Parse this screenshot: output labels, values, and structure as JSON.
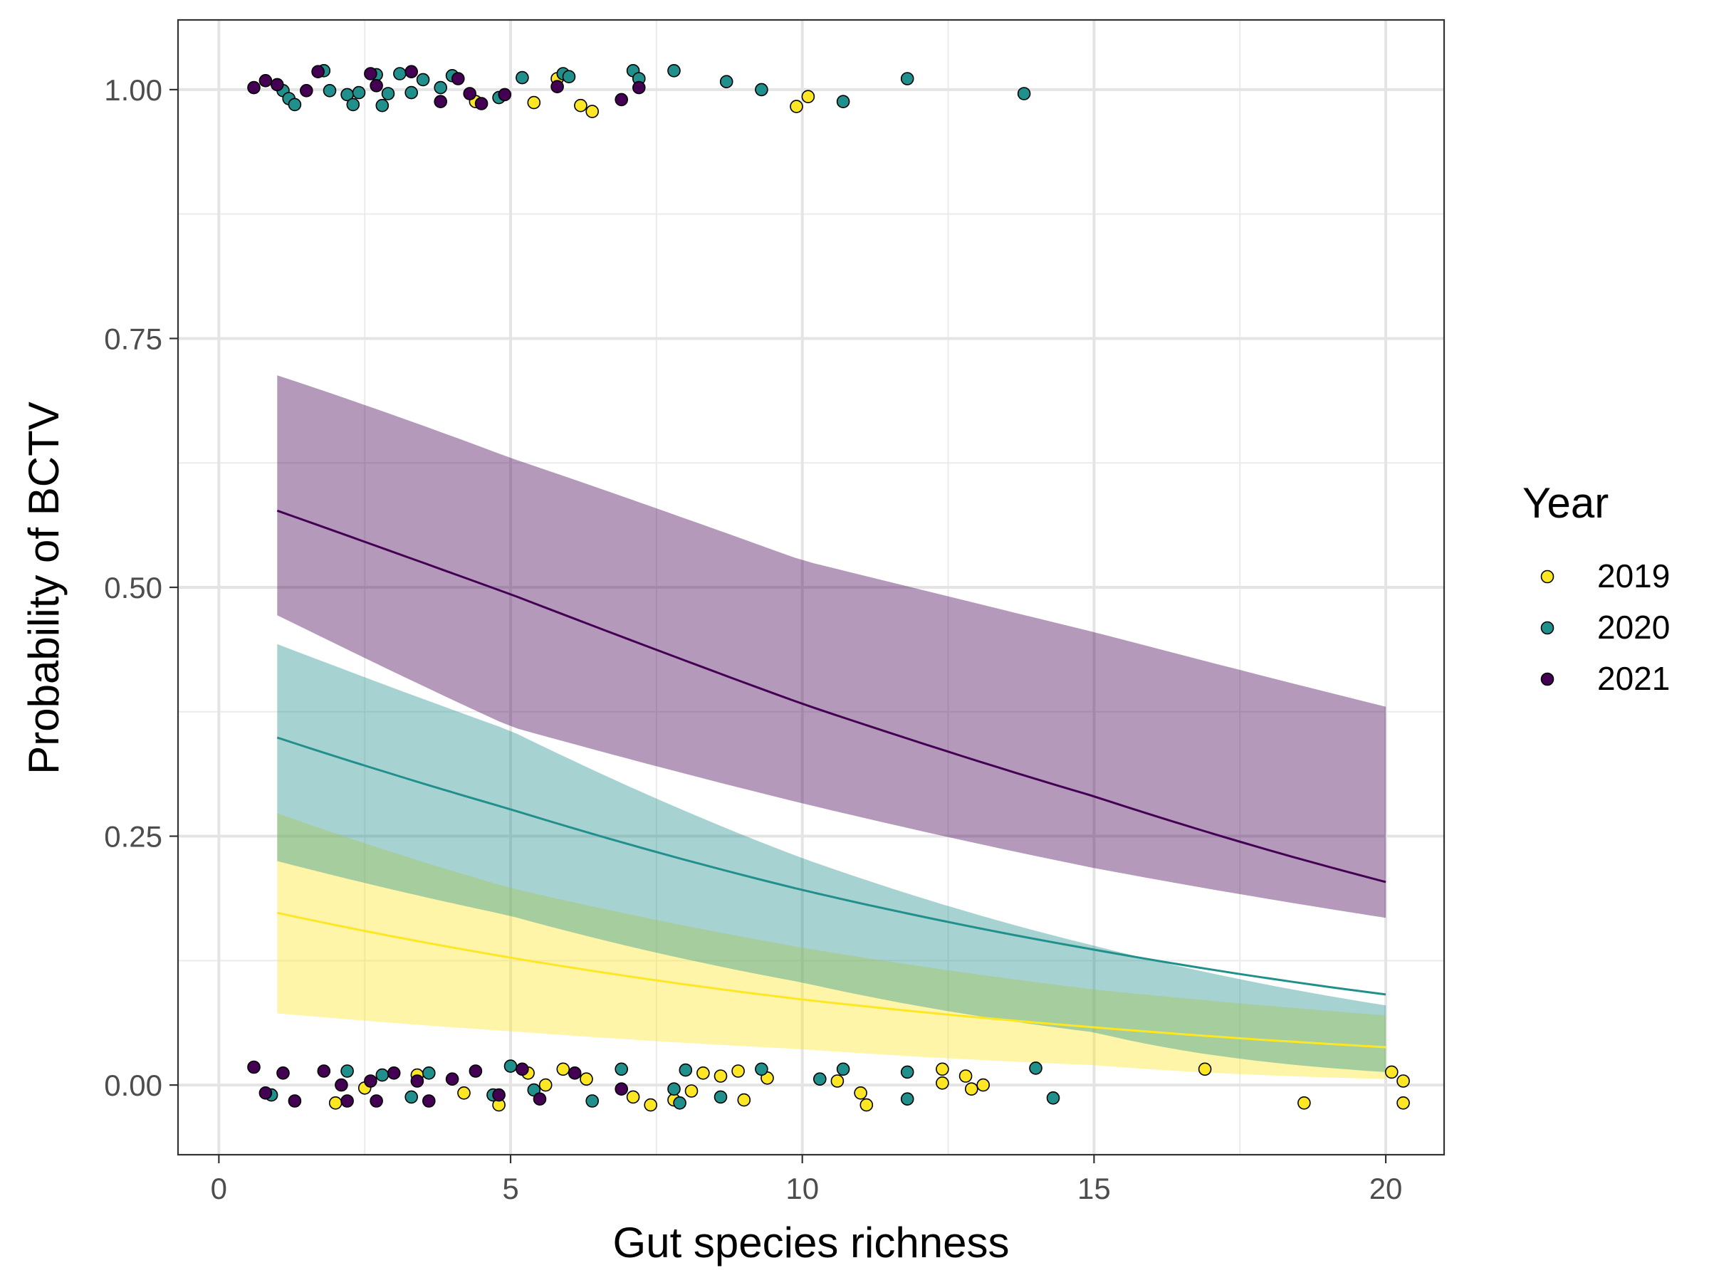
{
  "chart_data": {
    "type": "line",
    "title": "",
    "xlabel": "Gut species richness",
    "ylabel": "Probability of BCTV",
    "xlim": [
      -0.7,
      21.0
    ],
    "ylim": [
      -0.07,
      1.07
    ],
    "x_ticks": [
      0,
      5,
      10,
      15,
      20
    ],
    "x_tick_labels": [
      "0",
      "5",
      "10",
      "15",
      "20"
    ],
    "y_ticks": [
      0,
      0.25,
      0.5,
      0.75,
      1
    ],
    "y_tick_labels": [
      "0.00",
      "0.25",
      "0.50",
      "0.75",
      "1.00"
    ],
    "grid": true,
    "legend": {
      "title": "Year",
      "position": "right"
    },
    "series": [
      {
        "name": "2019",
        "color": "#FDE725",
        "fit": {
          "x": [
            1,
            5,
            10,
            15,
            20
          ],
          "y": [
            0.173,
            0.128,
            0.086,
            0.058,
            0.038
          ]
        },
        "ribbon": {
          "x": [
            1,
            5,
            10,
            15,
            20
          ],
          "lower": [
            0.072,
            0.054,
            0.036,
            0.02,
            0.006
          ],
          "upper": [
            0.273,
            0.198,
            0.138,
            0.096,
            0.07
          ]
        },
        "points": [
          [
            5.8,
            1.011
          ],
          [
            5.4,
            0.987
          ],
          [
            6.2,
            0.984
          ],
          [
            6.4,
            0.978
          ],
          [
            9.9,
            0.983
          ],
          [
            10.1,
            0.993
          ],
          [
            4.4,
            0.988
          ],
          [
            2.0,
            -0.018
          ],
          [
            2.5,
            -0.003
          ],
          [
            3.4,
            0.01
          ],
          [
            4.2,
            -0.008
          ],
          [
            4.8,
            -0.02
          ],
          [
            5.3,
            0.012
          ],
          [
            5.6,
            0.0
          ],
          [
            5.9,
            0.016
          ],
          [
            6.3,
            0.006
          ],
          [
            7.1,
            -0.012
          ],
          [
            7.4,
            -0.02
          ],
          [
            7.8,
            -0.015
          ],
          [
            8.1,
            -0.006
          ],
          [
            8.3,
            0.012
          ],
          [
            8.6,
            0.009
          ],
          [
            8.9,
            0.014
          ],
          [
            9.0,
            -0.015
          ],
          [
            9.4,
            0.007
          ],
          [
            10.6,
            0.004
          ],
          [
            11.0,
            -0.008
          ],
          [
            11.1,
            -0.02
          ],
          [
            12.4,
            0.016
          ],
          [
            12.4,
            0.002
          ],
          [
            12.8,
            0.009
          ],
          [
            12.9,
            -0.004
          ],
          [
            13.1,
            0.0
          ],
          [
            16.9,
            0.016
          ],
          [
            18.6,
            -0.018
          ],
          [
            20.1,
            0.013
          ],
          [
            20.3,
            0.004
          ],
          [
            20.3,
            -0.018
          ]
        ]
      },
      {
        "name": "2020",
        "color": "#21908C",
        "fit": {
          "x": [
            1,
            5,
            10,
            15,
            20
          ],
          "y": [
            0.349,
            0.277,
            0.196,
            0.136,
            0.091
          ]
        },
        "ribbon": {
          "x": [
            1,
            5,
            10,
            15,
            20
          ],
          "lower": [
            0.225,
            0.17,
            0.103,
            0.053,
            0.013
          ],
          "upper": [
            0.443,
            0.356,
            0.228,
            0.14,
            0.08
          ]
        },
        "points": [
          [
            1.1,
            0.999
          ],
          [
            1.2,
            0.991
          ],
          [
            1.3,
            0.985
          ],
          [
            1.8,
            1.019
          ],
          [
            1.9,
            0.999
          ],
          [
            2.2,
            0.995
          ],
          [
            2.3,
            0.985
          ],
          [
            2.4,
            0.997
          ],
          [
            2.7,
            1.015
          ],
          [
            2.8,
            0.984
          ],
          [
            2.9,
            0.996
          ],
          [
            3.1,
            1.016
          ],
          [
            3.3,
            0.997
          ],
          [
            3.5,
            1.01
          ],
          [
            3.8,
            1.002
          ],
          [
            4.0,
            1.014
          ],
          [
            4.8,
            0.992
          ],
          [
            5.2,
            1.012
          ],
          [
            5.9,
            1.016
          ],
          [
            6.0,
            1.013
          ],
          [
            7.1,
            1.019
          ],
          [
            7.2,
            1.011
          ],
          [
            7.8,
            1.019
          ],
          [
            8.7,
            1.008
          ],
          [
            9.3,
            1.0
          ],
          [
            10.7,
            0.988
          ],
          [
            11.8,
            1.011
          ],
          [
            13.8,
            0.996
          ],
          [
            0.9,
            -0.01
          ],
          [
            2.2,
            0.014
          ],
          [
            2.8,
            0.01
          ],
          [
            3.3,
            -0.012
          ],
          [
            3.6,
            0.012
          ],
          [
            4.7,
            -0.01
          ],
          [
            5.0,
            0.019
          ],
          [
            5.4,
            -0.005
          ],
          [
            6.4,
            -0.016
          ],
          [
            6.9,
            0.016
          ],
          [
            7.8,
            -0.004
          ],
          [
            7.9,
            -0.018
          ],
          [
            8.0,
            0.015
          ],
          [
            8.6,
            -0.012
          ],
          [
            9.3,
            0.016
          ],
          [
            10.3,
            0.006
          ],
          [
            10.7,
            0.016
          ],
          [
            11.8,
            0.013
          ],
          [
            11.8,
            -0.014
          ],
          [
            14.0,
            0.017
          ],
          [
            14.3,
            -0.013
          ]
        ]
      },
      {
        "name": "2021",
        "color": "#440154",
        "fit": {
          "x": [
            1,
            5,
            10,
            15,
            20
          ],
          "y": [
            0.577,
            0.493,
            0.383,
            0.29,
            0.204
          ]
        },
        "ribbon": {
          "x": [
            1,
            5,
            10,
            15,
            20
          ],
          "lower": [
            0.472,
            0.36,
            0.283,
            0.218,
            0.168
          ],
          "upper": [
            0.713,
            0.63,
            0.527,
            0.455,
            0.38
          ]
        },
        "points": [
          [
            0.6,
            1.002
          ],
          [
            0.8,
            1.009
          ],
          [
            1.0,
            1.005
          ],
          [
            1.5,
            0.999
          ],
          [
            1.7,
            1.018
          ],
          [
            2.6,
            1.016
          ],
          [
            2.7,
            1.004
          ],
          [
            3.3,
            1.018
          ],
          [
            3.8,
            0.988
          ],
          [
            4.1,
            1.011
          ],
          [
            4.3,
            0.996
          ],
          [
            4.5,
            0.986
          ],
          [
            4.9,
            0.995
          ],
          [
            6.9,
            0.99
          ],
          [
            7.2,
            1.002
          ],
          [
            5.8,
            1.003
          ],
          [
            0.6,
            0.018
          ],
          [
            0.8,
            -0.008
          ],
          [
            1.1,
            0.012
          ],
          [
            1.3,
            -0.016
          ],
          [
            1.8,
            0.014
          ],
          [
            2.1,
            0.0
          ],
          [
            2.2,
            -0.016
          ],
          [
            2.6,
            0.004
          ],
          [
            2.7,
            -0.016
          ],
          [
            3.0,
            0.012
          ],
          [
            3.4,
            0.004
          ],
          [
            3.6,
            -0.016
          ],
          [
            4.0,
            0.006
          ],
          [
            4.4,
            0.014
          ],
          [
            4.8,
            -0.01
          ],
          [
            5.2,
            0.016
          ],
          [
            5.5,
            -0.014
          ],
          [
            6.1,
            0.012
          ],
          [
            6.9,
            -0.004
          ]
        ]
      }
    ]
  }
}
